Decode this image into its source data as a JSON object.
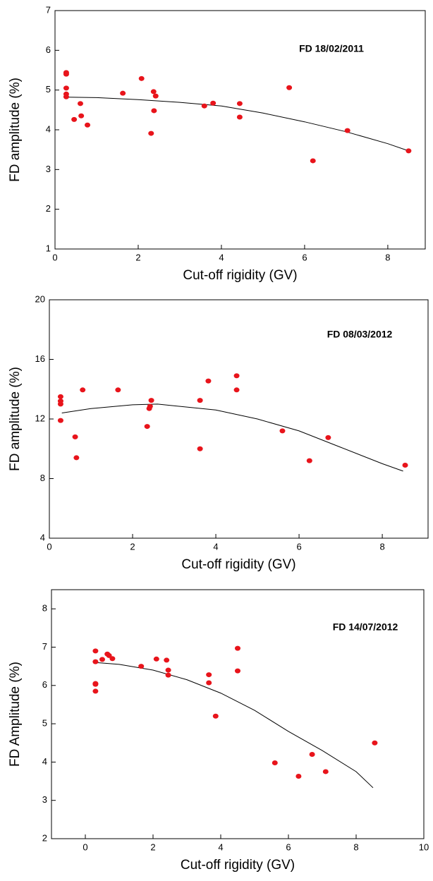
{
  "chart_data": [
    {
      "type": "scatter",
      "annotation": "FD 18/02/2011",
      "xlabel": "Cut-off rigidity (GV)",
      "ylabel": "FD amplitude (%)",
      "xlim": [
        0,
        8.9
      ],
      "xticks": [
        0,
        2,
        4,
        6,
        8
      ],
      "ylim": [
        1,
        7
      ],
      "yticks": [
        1,
        2,
        3,
        4,
        5,
        6,
        7
      ],
      "points": {
        "color": "#e8141b",
        "x": [
          0.27,
          0.27,
          0.27,
          0.27,
          0.27,
          0.46,
          0.61,
          0.63,
          0.78,
          1.63,
          2.08,
          2.31,
          2.37,
          2.42,
          2.38,
          3.59,
          3.8,
          4.44,
          4.44,
          5.63,
          6.2,
          7.03,
          8.5
        ],
        "values": [
          5.44,
          5.4,
          5.05,
          4.9,
          4.83,
          4.26,
          4.66,
          4.35,
          4.12,
          4.92,
          5.29,
          3.91,
          4.96,
          4.85,
          4.48,
          4.6,
          4.67,
          4.66,
          4.32,
          5.06,
          3.22,
          3.98,
          3.47
        ]
      },
      "fit": {
        "color": "#000000",
        "x": [
          0.3,
          1,
          2,
          3,
          4,
          5,
          6,
          7,
          8,
          8.5
        ],
        "values": [
          4.82,
          4.81,
          4.76,
          4.69,
          4.6,
          4.42,
          4.2,
          3.95,
          3.65,
          3.47
        ]
      }
    },
    {
      "type": "scatter",
      "annotation": "FD 08/03/2012",
      "xlabel": "Cut-off rigidity (GV)",
      "ylabel": "FD amplitude (%)",
      "xlim": [
        0,
        9.1
      ],
      "xticks": [
        0,
        2,
        4,
        6,
        8
      ],
      "ylim": [
        4,
        20
      ],
      "yticks": [
        4,
        8,
        12,
        16,
        20
      ],
      "points": {
        "color": "#e8141b",
        "x": [
          0.27,
          0.27,
          0.27,
          0.27,
          0.62,
          0.65,
          0.8,
          1.65,
          2.35,
          2.4,
          2.42,
          2.45,
          3.62,
          3.62,
          3.82,
          4.5,
          4.5,
          5.6,
          6.25,
          6.7,
          8.55
        ],
        "values": [
          13.5,
          13.2,
          13.0,
          11.9,
          10.8,
          9.4,
          13.95,
          13.95,
          11.5,
          12.7,
          12.85,
          13.25,
          13.25,
          10.0,
          14.55,
          14.9,
          13.95,
          11.2,
          9.2,
          10.75,
          8.9
        ]
      },
      "fit": {
        "color": "#000000",
        "x": [
          0.3,
          1,
          2,
          2.6,
          4,
          5,
          6,
          7,
          8,
          8.5
        ],
        "values": [
          12.4,
          12.7,
          12.95,
          13.0,
          12.6,
          12.0,
          11.2,
          10.1,
          9.0,
          8.5
        ]
      }
    },
    {
      "type": "scatter",
      "annotation": "FD 14/07/2012",
      "xlabel": "Cut-off rigidity (GV)",
      "ylabel": "FD Amplitude (%)",
      "xlim": [
        -1,
        10
      ],
      "xticks": [
        0,
        2,
        4,
        6,
        8,
        10
      ],
      "ylim": [
        2,
        8.5
      ],
      "yticks": [
        2,
        3,
        4,
        5,
        6,
        7,
        8
      ],
      "points": {
        "color": "#e8141b",
        "x": [
          0.3,
          0.3,
          0.3,
          0.3,
          0.3,
          0.5,
          0.65,
          0.7,
          0.8,
          1.65,
          2.1,
          2.4,
          2.45,
          2.45,
          3.65,
          3.65,
          3.85,
          4.5,
          4.5,
          5.6,
          6.3,
          6.7,
          7.1,
          8.55
        ],
        "values": [
          6.9,
          6.62,
          6.05,
          6.03,
          5.85,
          6.68,
          6.82,
          6.78,
          6.7,
          6.5,
          6.69,
          6.66,
          6.4,
          6.27,
          6.28,
          6.07,
          5.2,
          6.97,
          6.38,
          3.98,
          3.63,
          4.2,
          3.75,
          4.5
        ]
      },
      "fit": {
        "color": "#000000",
        "x": [
          0.3,
          1,
          2,
          3,
          4,
          5,
          6,
          7,
          8,
          8.5
        ],
        "values": [
          6.6,
          6.55,
          6.4,
          6.15,
          5.8,
          5.35,
          4.8,
          4.3,
          3.75,
          3.33
        ]
      }
    }
  ]
}
